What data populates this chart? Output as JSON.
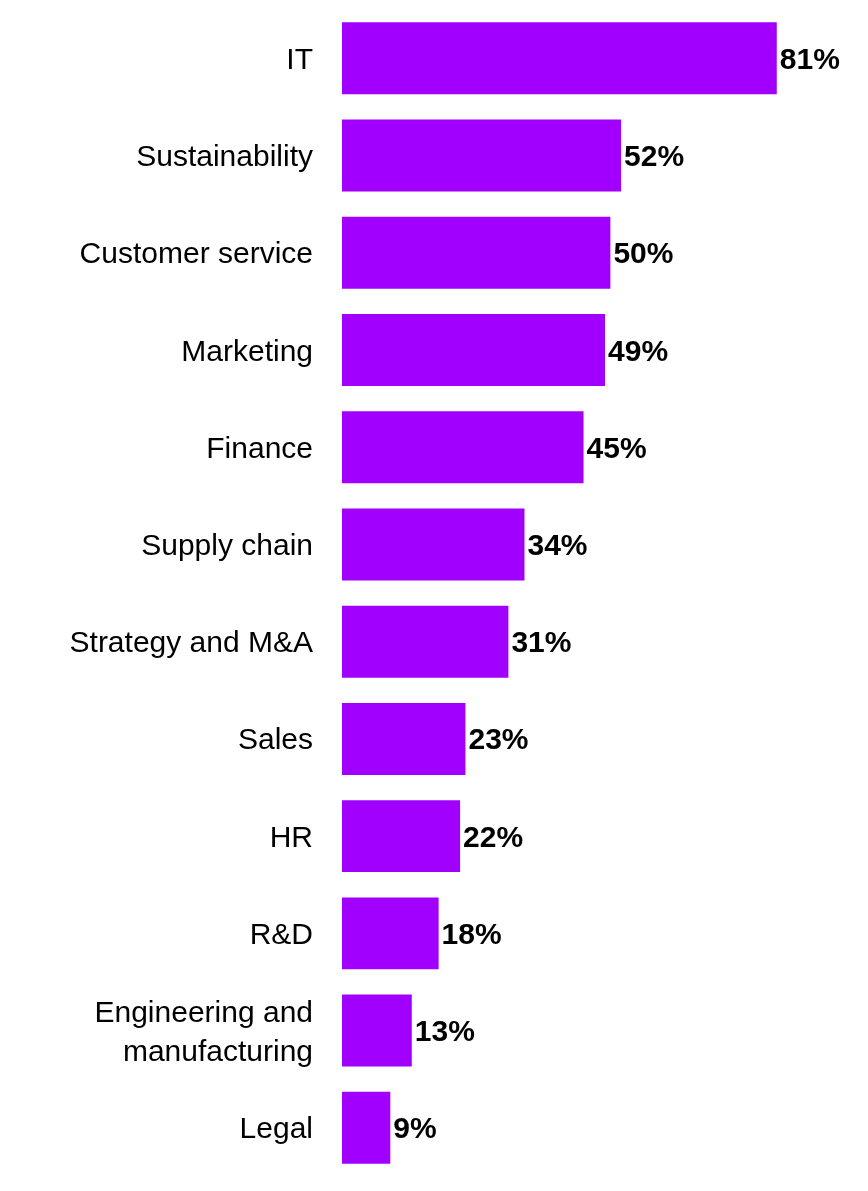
{
  "chart_data": {
    "type": "bar",
    "orientation": "horizontal",
    "categories": [
      "IT",
      "Sustainability",
      "Customer service",
      "Marketing",
      "Finance",
      "Supply chain",
      "Strategy and M&A",
      "Sales",
      "HR",
      "R&D",
      "Engineering and\nmanufacturing",
      "Legal"
    ],
    "values": [
      81,
      52,
      50,
      49,
      45,
      34,
      31,
      23,
      22,
      18,
      13,
      9
    ],
    "value_labels": [
      "81%",
      "52%",
      "50%",
      "49%",
      "45%",
      "34%",
      "31%",
      "23%",
      "22%",
      "18%",
      "13%",
      "9%"
    ],
    "color": "#a100ff",
    "xlim": [
      0,
      98
    ],
    "tick_labels": "y"
  }
}
